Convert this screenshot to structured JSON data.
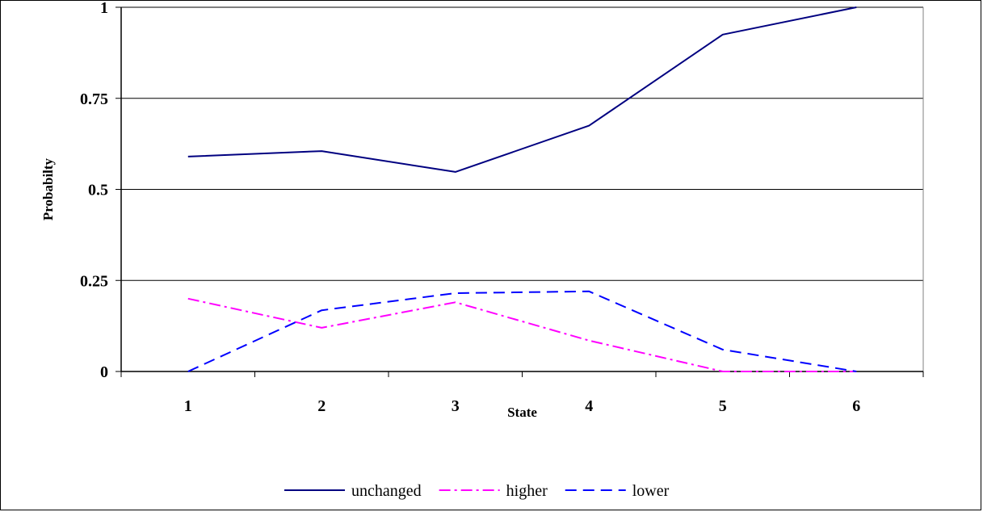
{
  "chart_data": {
    "type": "line",
    "title": "",
    "xlabel": "State",
    "ylabel": "Probabilty",
    "categories": [
      "1",
      "2",
      "3",
      "4",
      "5",
      "6"
    ],
    "ylim": [
      0,
      1
    ],
    "yticks": [
      "0",
      "0.25",
      "0.5",
      "0.75",
      "1"
    ],
    "ytick_values": [
      0,
      0.25,
      0.5,
      0.75,
      1
    ],
    "grid": true,
    "legend_position": "bottom",
    "series": [
      {
        "name": "unchanged",
        "values": [
          0.59,
          0.605,
          0.548,
          0.675,
          0.925,
          1.0
        ],
        "color": "#000080",
        "dash": "solid"
      },
      {
        "name": "higher",
        "values": [
          0.2,
          0.12,
          0.19,
          0.085,
          0.0,
          0.0
        ],
        "color": "#ff00ff",
        "dash": "dashdot"
      },
      {
        "name": "lower",
        "values": [
          0.0,
          0.168,
          0.215,
          0.22,
          0.06,
          0.0
        ],
        "color": "#0000ff",
        "dash": "dashed"
      }
    ]
  }
}
